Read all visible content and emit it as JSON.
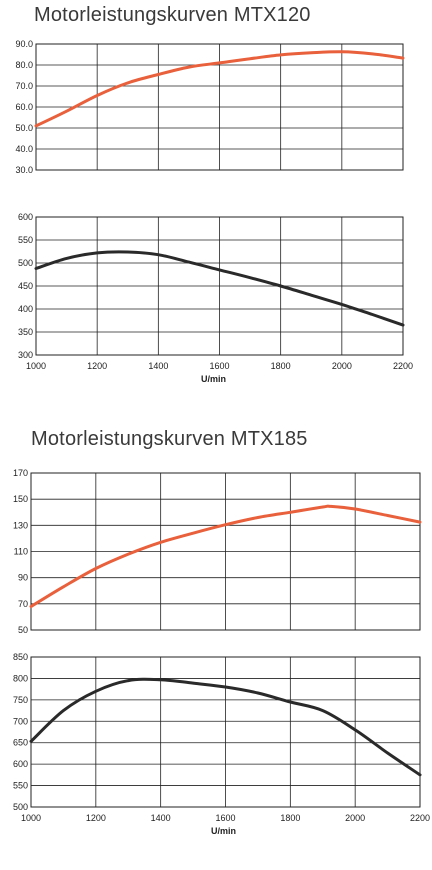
{
  "colors": {
    "power": "#e8603c",
    "torque": "#2a2a2a",
    "grid": "#222222",
    "background": "#ffffff"
  },
  "charts": [
    {
      "title": "Motorleistungskurven MTX120",
      "xlabel": "U/min",
      "xticks": [
        "1000",
        "1200",
        "1400",
        "1600",
        "1800",
        "2000",
        "2200"
      ],
      "upper_yticks": [
        "90.0",
        "80.0",
        "70.0",
        "60.0",
        "50.0",
        "40.0",
        "30.0"
      ],
      "lower_yticks": [
        "600",
        "550",
        "500",
        "450",
        "400",
        "350",
        "300"
      ]
    },
    {
      "title": "Motorleistungskurven MTX185",
      "xlabel": "U/min",
      "xticks": [
        "1000",
        "1200",
        "1400",
        "1600",
        "1800",
        "2000",
        "2200"
      ],
      "upper_yticks": [
        "170",
        "150",
        "130",
        "110",
        "90",
        "70",
        "50"
      ],
      "lower_yticks": [
        "850",
        "800",
        "750",
        "700",
        "650",
        "600",
        "550",
        "500"
      ]
    }
  ],
  "chart_data": [
    {
      "type": "line",
      "title": "Motorleistungskurven MTX120",
      "xlabel": "U/min",
      "xlim": [
        1000,
        2200
      ],
      "ylim": [
        30,
        90
      ],
      "grid": true,
      "series": [
        {
          "x": [
            1000,
            1100,
            1200,
            1300,
            1400,
            1500,
            1600,
            1700,
            1800,
            1900,
            2000,
            2100,
            2200
          ],
          "y": [
            51,
            58,
            65.5,
            71.5,
            75.5,
            79,
            81,
            83,
            84.8,
            85.8,
            86.3,
            85.3,
            83.3
          ]
        }
      ]
    },
    {
      "type": "line",
      "xlabel": "U/min",
      "xlim": [
        1000,
        2200
      ],
      "ylim": [
        300,
        600
      ],
      "grid": true,
      "series": [
        {
          "x": [
            1000,
            1100,
            1200,
            1300,
            1400,
            1500,
            1600,
            1700,
            1800,
            1900,
            2000,
            2100,
            2200
          ],
          "y": [
            488,
            510,
            522,
            524,
            518,
            502,
            485,
            468,
            450,
            430,
            410,
            388,
            365
          ]
        }
      ]
    },
    {
      "type": "line",
      "title": "Motorleistungskurven MTX185",
      "xlabel": "U/min",
      "xlim": [
        1000,
        2200
      ],
      "ylim": [
        50,
        170
      ],
      "grid": true,
      "series": [
        {
          "x": [
            1000,
            1100,
            1200,
            1300,
            1400,
            1500,
            1600,
            1700,
            1800,
            1900,
            1925,
            2000,
            2100,
            2200
          ],
          "y": [
            68,
            83,
            97,
            108,
            117,
            124,
            130.5,
            136,
            140,
            144,
            144.5,
            142.5,
            137.5,
            132.5
          ]
        }
      ]
    },
    {
      "type": "line",
      "xlabel": "U/min",
      "xlim": [
        1000,
        2200
      ],
      "ylim": [
        500,
        850
      ],
      "grid": true,
      "series": [
        {
          "x": [
            1000,
            1100,
            1200,
            1300,
            1400,
            1500,
            1600,
            1700,
            1800,
            1900,
            2000,
            2100,
            2200
          ],
          "y": [
            653,
            725,
            770,
            795,
            797,
            789,
            780,
            766,
            745,
            725,
            680,
            626,
            575
          ]
        }
      ]
    }
  ]
}
